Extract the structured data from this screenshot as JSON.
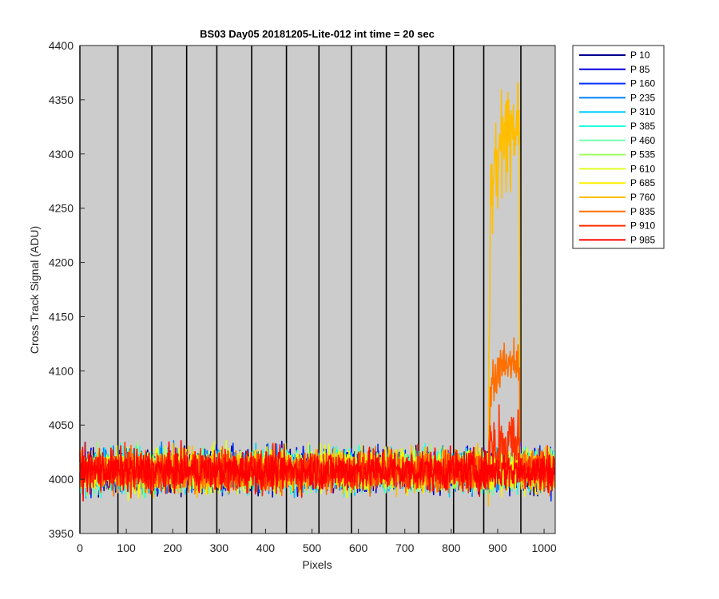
{
  "chart_data": {
    "type": "line",
    "title": "BS03 Day05 20181205-Lite-012 int time = 20 sec",
    "xlabel": "Pixels",
    "ylabel": "Cross Track Signal (ADU)",
    "xlim": [
      0,
      1024
    ],
    "ylim": [
      3950,
      4400
    ],
    "xticks": [
      0,
      100,
      200,
      300,
      400,
      500,
      600,
      700,
      800,
      900,
      1000
    ],
    "yticks": [
      3950,
      4000,
      4050,
      4100,
      4150,
      4200,
      4250,
      4300,
      4350,
      4400
    ],
    "background_color": "#cccccc",
    "grid": false,
    "vertical_markers": [
      0,
      82,
      155,
      230,
      295,
      370,
      445,
      515,
      585,
      660,
      730,
      805,
      870,
      950
    ],
    "legend_position": "outside-top-right",
    "noise": {
      "baseline": 4008,
      "amplitude": 15
    },
    "series": [
      {
        "name": "P 10",
        "color": "#00008f",
        "baseline": 4008
      },
      {
        "name": "P 85",
        "color": "#0000df",
        "baseline": 4008
      },
      {
        "name": "P 160",
        "color": "#0030ff",
        "baseline": 4008
      },
      {
        "name": "P 235",
        "color": "#0080ff",
        "baseline": 4008
      },
      {
        "name": "P 310",
        "color": "#00cfff",
        "baseline": 4008
      },
      {
        "name": "P 385",
        "color": "#20ffdf",
        "baseline": 4008
      },
      {
        "name": "P 460",
        "color": "#70ffb0",
        "baseline": 4008
      },
      {
        "name": "P 535",
        "color": "#a0ff60",
        "baseline": 4008
      },
      {
        "name": "P 610",
        "color": "#dfff20",
        "baseline": 4008
      },
      {
        "name": "P 685",
        "color": "#ffef00",
        "baseline": 4008
      },
      {
        "name": "P 760",
        "color": "#ffbf00",
        "baseline": 4008,
        "feature": {
          "x_start": 880,
          "x_end": 948,
          "peak": 4320,
          "max": 4366
        }
      },
      {
        "name": "P 835",
        "color": "#ff7000",
        "baseline": 4008,
        "feature": {
          "x_start": 880,
          "x_end": 948,
          "peak": 4105,
          "max": 4124
        }
      },
      {
        "name": "P 910",
        "color": "#ff3000",
        "baseline": 4008,
        "feature": {
          "x_start": 880,
          "x_end": 948,
          "peak": 4035,
          "max": 4064
        }
      },
      {
        "name": "P 985",
        "color": "#ff0000",
        "baseline": 4008
      }
    ]
  }
}
